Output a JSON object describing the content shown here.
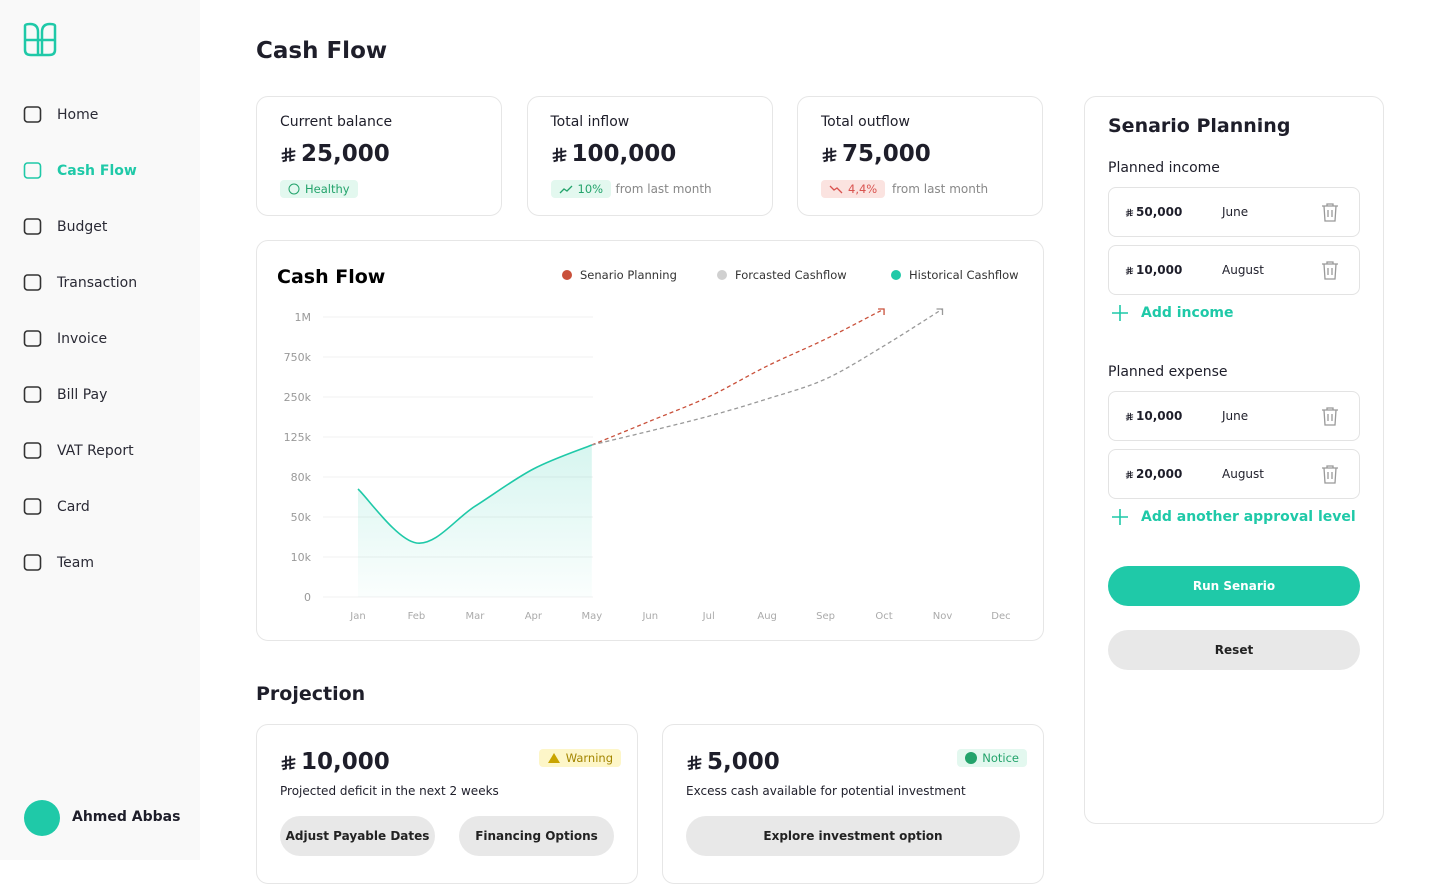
{
  "sidebar": {
    "nav": [
      "Home",
      "Cash Flow",
      "Budget",
      "Transaction",
      "Invoice",
      "Bill Pay",
      "VAT Report",
      "Card",
      "Team"
    ],
    "user": "Ahmed Abbas"
  },
  "page_title": "Cash Flow",
  "stats": [
    {
      "label": "Current balance",
      "amount": "25,000",
      "badge": "Healthy"
    },
    {
      "label": "Total inflow",
      "amount": "100,000",
      "change": "10%",
      "note": "from last month"
    },
    {
      "label": "Total outflow",
      "amount": "75,000",
      "change": "4,4%",
      "note": "from last month"
    }
  ],
  "chart": {
    "type": "line",
    "title": "Cash Flow",
    "categories": [
      "Jan",
      "Feb",
      "Mar",
      "Apr",
      "May",
      "Jun",
      "Jul",
      "Aug",
      "Sep",
      "Oct",
      "Nov",
      "Dec"
    ],
    "yticks": [
      0,
      {
        "value": 10000,
        "label": "10k"
      },
      {
        "value": 50000,
        "label": "50k"
      },
      {
        "value": 80000,
        "label": "80k"
      },
      {
        "value": 125000,
        "label": "125k"
      },
      {
        "value": 250000,
        "label": "250k"
      },
      {
        "value": 750000,
        "label": "750k"
      },
      {
        "value": 1000000,
        "label": "1M"
      }
    ],
    "grid": true,
    "series": [
      {
        "name": "Senario Planning",
        "color": "#c9503a",
        "values": [
          null,
          null,
          null,
          null,
          116000,
          175000,
          253000,
          637000,
          862000,
          1050000,
          null,
          null
        ]
      },
      {
        "name": "Forcasted Cashflow",
        "color": "#d0d0d0",
        "values": [
          null,
          null,
          null,
          null,
          116000,
          144000,
          190000,
          244000,
          475000,
          820000,
          1050000,
          null
        ]
      },
      {
        "name": "Historical Cashflow",
        "color": "#1fc9a8",
        "values": [
          71000,
          24000,
          58000,
          89000,
          116000,
          null,
          null,
          null,
          null,
          null,
          null,
          null
        ]
      }
    ]
  },
  "projection": {
    "title": "Projection",
    "cards": [
      {
        "amount": "10,000",
        "badge": "Warning",
        "text": "Projected deficit in the next 2 weeks",
        "buttons": [
          "Adjust Payable Dates",
          "Financing  Options"
        ]
      },
      {
        "amount": "5,000",
        "badge": "Notice",
        "text": "Excess cash available for potential investment",
        "buttons": [
          "Explore investment option"
        ]
      }
    ]
  },
  "scenario": {
    "title": "Senario Planning",
    "income_title": "Planned income",
    "income": [
      {
        "amount": "50,000",
        "month": "June"
      },
      {
        "amount": "10,000",
        "month": "August"
      }
    ],
    "add_income": "Add income",
    "expense_title": "Planned expense",
    "expense": [
      {
        "amount": "10,000",
        "month": "June"
      },
      {
        "amount": "20,000",
        "month": "August"
      }
    ],
    "add_expense": "Add another approval level",
    "run": "Run Senario",
    "reset": "Reset"
  }
}
